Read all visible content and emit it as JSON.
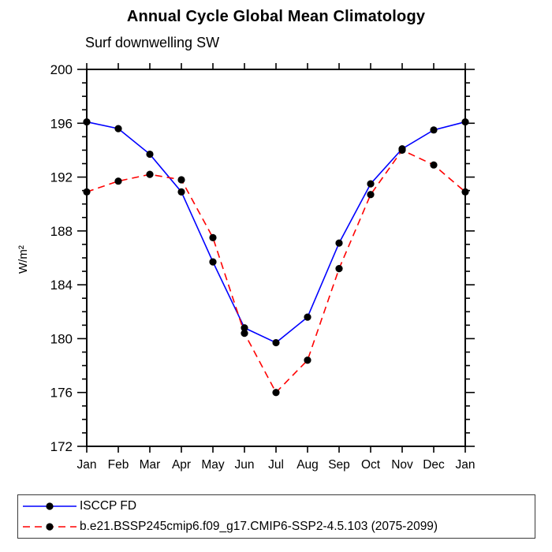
{
  "chart": {
    "title": "Annual Cycle Global Mean Climatology",
    "subtitle": "Surf downwelling SW",
    "ylabel": "W/m²"
  },
  "chart_data": {
    "type": "line",
    "title": "Annual Cycle Global Mean Climatology",
    "subtitle": "Surf downwelling SW",
    "xlabel": "",
    "ylabel": "W/m²",
    "x_categories": [
      "Jan",
      "Feb",
      "Mar",
      "Apr",
      "May",
      "Jun",
      "Jul",
      "Aug",
      "Sep",
      "Oct",
      "Nov",
      "Dec",
      "Jan"
    ],
    "ylim": [
      172,
      200
    ],
    "ytick_interval": 4,
    "yminor_interval": 1,
    "yticks": [
      172,
      176,
      180,
      184,
      188,
      192,
      196,
      200
    ],
    "grid": false,
    "legend_position": "bottom-outside-boxed",
    "marker_color": "#000000",
    "series": [
      {
        "name": "ISCCP FD",
        "color": "#0000ff",
        "line_style": "solid",
        "marker": "dot",
        "values": [
          196.1,
          195.6,
          193.7,
          190.9,
          185.7,
          180.8,
          179.7,
          181.6,
          187.1,
          191.5,
          194.1,
          195.5,
          196.1
        ]
      },
      {
        "name": "b.e21.BSSP245cmip6.f09_g17.CMIP6-SSP2-4.5.103 (2075-2099)",
        "color": "#ff0000",
        "line_style": "dashed",
        "marker": "dot",
        "values": [
          190.9,
          191.7,
          192.2,
          191.8,
          187.5,
          180.4,
          176.0,
          178.4,
          185.2,
          190.7,
          194.0,
          192.9,
          190.9
        ]
      }
    ]
  }
}
